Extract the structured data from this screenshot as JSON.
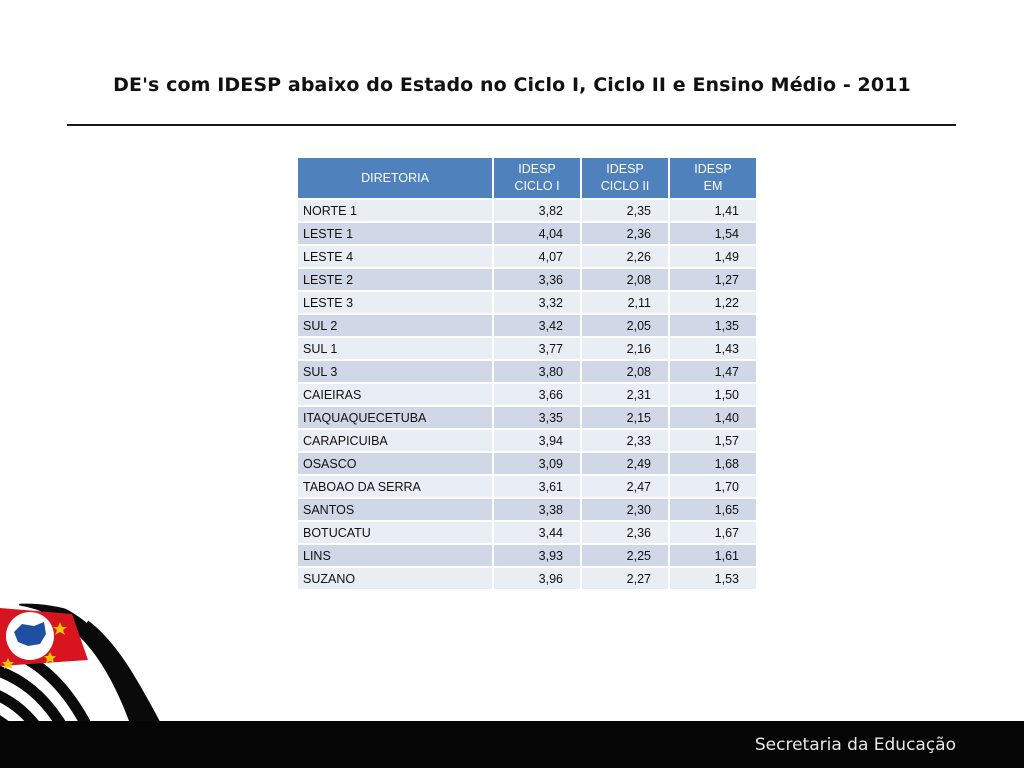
{
  "slide": {
    "title": "DE's com IDESP abaixo do Estado no Ciclo I, Ciclo II e Ensino Médio - 2011"
  },
  "table": {
    "headers": {
      "diretoria": "DIRETORIA",
      "ciclo1_l1": "IDESP",
      "ciclo1_l2": "CICLO I",
      "ciclo2_l1": "IDESP",
      "ciclo2_l2": "CICLO II",
      "em_l1": "IDESP",
      "em_l2": "EM"
    },
    "rows": [
      {
        "name": "NORTE 1",
        "c1": "3,82",
        "c2": "2,35",
        "em": "1,41"
      },
      {
        "name": "LESTE 1",
        "c1": "4,04",
        "c2": "2,36",
        "em": "1,54"
      },
      {
        "name": "LESTE 4",
        "c1": "4,07",
        "c2": "2,26",
        "em": "1,49"
      },
      {
        "name": "LESTE 2",
        "c1": "3,36",
        "c2": "2,08",
        "em": "1,27"
      },
      {
        "name": "LESTE 3",
        "c1": "3,32",
        "c2": "2,11",
        "em": "1,22"
      },
      {
        "name": "SUL 2",
        "c1": "3,42",
        "c2": "2,05",
        "em": "1,35"
      },
      {
        "name": "SUL 1",
        "c1": "3,77",
        "c2": "2,16",
        "em": "1,43"
      },
      {
        "name": "SUL 3",
        "c1": "3,80",
        "c2": "2,08",
        "em": "1,47"
      },
      {
        "name": "CAIEIRAS",
        "c1": "3,66",
        "c2": "2,31",
        "em": "1,50"
      },
      {
        "name": "ITAQUAQUECETUBA",
        "c1": "3,35",
        "c2": "2,15",
        "em": "1,40"
      },
      {
        "name": "CARAPICUIBA",
        "c1": "3,94",
        "c2": "2,33",
        "em": "1,57"
      },
      {
        "name": "OSASCO",
        "c1": "3,09",
        "c2": "2,49",
        "em": "1,68"
      },
      {
        "name": "TABOAO DA SERRA",
        "c1": "3,61",
        "c2": "2,47",
        "em": "1,70"
      },
      {
        "name": "SANTOS",
        "c1": "3,38",
        "c2": "2,30",
        "em": "1,65"
      },
      {
        "name": "BOTUCATU",
        "c1": "3,44",
        "c2": "2,36",
        "em": "1,67"
      },
      {
        "name": "LINS",
        "c1": "3,93",
        "c2": "2,25",
        "em": "1,61"
      },
      {
        "name": "SUZANO",
        "c1": "3,96",
        "c2": "2,27",
        "em": "1,53"
      }
    ]
  },
  "footer": {
    "text": "Secretaria da Educação"
  },
  "colors": {
    "header_bg": "#4f81bd",
    "row_light": "#e9edf4",
    "row_dark": "#d0d8e8",
    "footer_bg": "#050505",
    "flag_red": "#d7141f",
    "flag_blue": "#1f4fa3"
  },
  "icons": {
    "flag": "sao-paulo-flag-icon"
  }
}
